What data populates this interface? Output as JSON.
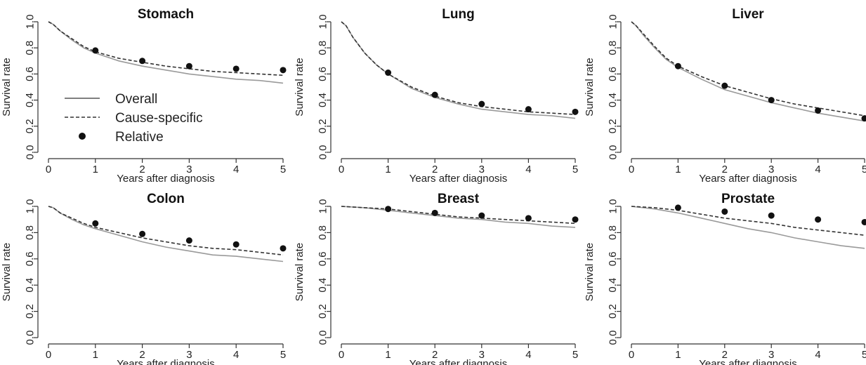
{
  "figure": {
    "legend": {
      "entries": [
        {
          "label": "Overall",
          "style": "solid"
        },
        {
          "label": "Cause-specific",
          "style": "dashed"
        },
        {
          "label": "Relative",
          "style": "point"
        }
      ],
      "panel": "Stomach",
      "placement": "bottom-left"
    }
  },
  "chart_data": [
    {
      "type": "line",
      "title": "Stomach",
      "xlabel": "Years after diagnosis",
      "ylabel": "Survival rate",
      "xlim": [
        0,
        5
      ],
      "ylim": [
        0,
        1
      ],
      "x_ticks": [
        "0",
        "1",
        "2",
        "3",
        "4",
        "5"
      ],
      "y_ticks": [
        "0.0",
        "0.2",
        "0.4",
        "0.6",
        "0.8",
        "1.0"
      ],
      "grid": false,
      "series": [
        {
          "name": "Overall",
          "style": "solid",
          "color": "#9a9a9a",
          "x": [
            0,
            0.1,
            0.25,
            0.5,
            0.75,
            1,
            1.5,
            2,
            2.5,
            3,
            3.5,
            4,
            4.5,
            5
          ],
          "y": [
            1.0,
            0.98,
            0.93,
            0.86,
            0.8,
            0.76,
            0.7,
            0.66,
            0.63,
            0.6,
            0.58,
            0.56,
            0.55,
            0.53
          ]
        },
        {
          "name": "Cause-specific",
          "style": "dashed",
          "color": "#333333",
          "x": [
            0,
            0.1,
            0.25,
            0.5,
            0.75,
            1,
            1.5,
            2,
            2.5,
            3,
            3.5,
            4,
            4.5,
            5
          ],
          "y": [
            1.0,
            0.98,
            0.93,
            0.87,
            0.81,
            0.77,
            0.72,
            0.69,
            0.66,
            0.64,
            0.62,
            0.61,
            0.6,
            0.59
          ]
        },
        {
          "name": "Relative",
          "style": "point",
          "color": "#111111",
          "x": [
            1,
            2,
            3,
            4,
            5
          ],
          "y": [
            0.78,
            0.7,
            0.66,
            0.64,
            0.63
          ]
        }
      ]
    },
    {
      "type": "line",
      "title": "Lung",
      "xlabel": "Years after diagnosis",
      "ylabel": "Survival rate",
      "xlim": [
        0,
        5
      ],
      "ylim": [
        0,
        1
      ],
      "x_ticks": [
        "0",
        "1",
        "2",
        "3",
        "4",
        "5"
      ],
      "y_ticks": [
        "0.0",
        "0.2",
        "0.4",
        "0.6",
        "0.8",
        "1.0"
      ],
      "grid": false,
      "series": [
        {
          "name": "Overall",
          "style": "solid",
          "color": "#9a9a9a",
          "x": [
            0,
            0.1,
            0.25,
            0.5,
            0.75,
            1,
            1.5,
            2,
            2.5,
            3,
            3.5,
            4,
            4.5,
            5
          ],
          "y": [
            1.0,
            0.97,
            0.88,
            0.76,
            0.67,
            0.6,
            0.49,
            0.42,
            0.37,
            0.33,
            0.31,
            0.29,
            0.28,
            0.26
          ]
        },
        {
          "name": "Cause-specific",
          "style": "dashed",
          "color": "#333333",
          "x": [
            0,
            0.1,
            0.25,
            0.5,
            0.75,
            1,
            1.5,
            2,
            2.5,
            3,
            3.5,
            4,
            4.5,
            5
          ],
          "y": [
            1.0,
            0.97,
            0.88,
            0.76,
            0.67,
            0.6,
            0.5,
            0.43,
            0.38,
            0.35,
            0.33,
            0.31,
            0.3,
            0.29
          ]
        },
        {
          "name": "Relative",
          "style": "point",
          "color": "#111111",
          "x": [
            1,
            2,
            3,
            4,
            5
          ],
          "y": [
            0.61,
            0.44,
            0.37,
            0.33,
            0.31
          ]
        }
      ]
    },
    {
      "type": "line",
      "title": "Liver",
      "xlabel": "Years after diagnosis",
      "ylabel": "Survival rate",
      "xlim": [
        0,
        5
      ],
      "ylim": [
        0,
        1
      ],
      "x_ticks": [
        "0",
        "1",
        "2",
        "3",
        "4",
        "5"
      ],
      "y_ticks": [
        "0.0",
        "0.2",
        "0.4",
        "0.6",
        "0.8",
        "1.0"
      ],
      "grid": false,
      "series": [
        {
          "name": "Overall",
          "style": "solid",
          "color": "#9a9a9a",
          "x": [
            0,
            0.1,
            0.25,
            0.5,
            0.75,
            1,
            1.5,
            2,
            2.5,
            3,
            3.5,
            4,
            4.5,
            5
          ],
          "y": [
            1.0,
            0.97,
            0.9,
            0.8,
            0.71,
            0.65,
            0.56,
            0.48,
            0.43,
            0.38,
            0.34,
            0.3,
            0.27,
            0.24
          ]
        },
        {
          "name": "Cause-specific",
          "style": "dashed",
          "color": "#333333",
          "x": [
            0,
            0.1,
            0.25,
            0.5,
            0.75,
            1,
            1.5,
            2,
            2.5,
            3,
            3.5,
            4,
            4.5,
            5
          ],
          "y": [
            1.0,
            0.97,
            0.91,
            0.81,
            0.72,
            0.66,
            0.58,
            0.51,
            0.46,
            0.41,
            0.37,
            0.34,
            0.31,
            0.28
          ]
        },
        {
          "name": "Relative",
          "style": "point",
          "color": "#111111",
          "x": [
            1,
            2,
            3,
            4,
            5
          ],
          "y": [
            0.66,
            0.51,
            0.4,
            0.32,
            0.26
          ]
        }
      ]
    },
    {
      "type": "line",
      "title": "Colon",
      "xlabel": "Years after diagnosis",
      "ylabel": "Survival rate",
      "xlim": [
        0,
        5
      ],
      "ylim": [
        0,
        1
      ],
      "x_ticks": [
        "0",
        "1",
        "2",
        "3",
        "4",
        "5"
      ],
      "y_ticks": [
        "0.0",
        "0.2",
        "0.4",
        "0.6",
        "0.8",
        "1.0"
      ],
      "grid": false,
      "series": [
        {
          "name": "Overall",
          "style": "solid",
          "color": "#9a9a9a",
          "x": [
            0,
            0.1,
            0.25,
            0.5,
            0.75,
            1,
            1.5,
            2,
            2.5,
            3,
            3.5,
            4,
            4.5,
            5
          ],
          "y": [
            1.0,
            0.99,
            0.95,
            0.9,
            0.86,
            0.83,
            0.78,
            0.73,
            0.69,
            0.66,
            0.63,
            0.62,
            0.6,
            0.58
          ]
        },
        {
          "name": "Cause-specific",
          "style": "dashed",
          "color": "#333333",
          "x": [
            0,
            0.1,
            0.25,
            0.5,
            0.75,
            1,
            1.5,
            2,
            2.5,
            3,
            3.5,
            4,
            4.5,
            5
          ],
          "y": [
            1.0,
            0.99,
            0.95,
            0.91,
            0.87,
            0.84,
            0.8,
            0.76,
            0.73,
            0.7,
            0.68,
            0.67,
            0.65,
            0.63
          ]
        },
        {
          "name": "Relative",
          "style": "point",
          "color": "#111111",
          "x": [
            1,
            2,
            3,
            4,
            5
          ],
          "y": [
            0.87,
            0.79,
            0.74,
            0.71,
            0.68
          ]
        }
      ]
    },
    {
      "type": "line",
      "title": "Breast",
      "xlabel": "Years after diagnosis",
      "ylabel": "Survival rate",
      "xlim": [
        0,
        5
      ],
      "ylim": [
        0,
        1
      ],
      "x_ticks": [
        "0",
        "1",
        "2",
        "3",
        "4",
        "5"
      ],
      "y_ticks": [
        "0.0",
        "0.2",
        "0.4",
        "0.6",
        "0.8",
        "1.0"
      ],
      "grid": false,
      "series": [
        {
          "name": "Overall",
          "style": "solid",
          "color": "#9a9a9a",
          "x": [
            0,
            0.5,
            1,
            1.5,
            2,
            2.5,
            3,
            3.5,
            4,
            4.5,
            5
          ],
          "y": [
            1.0,
            0.99,
            0.97,
            0.95,
            0.93,
            0.91,
            0.9,
            0.88,
            0.87,
            0.85,
            0.84
          ]
        },
        {
          "name": "Cause-specific",
          "style": "dashed",
          "color": "#333333",
          "x": [
            0,
            0.5,
            1,
            1.5,
            2,
            2.5,
            3,
            3.5,
            4,
            4.5,
            5
          ],
          "y": [
            1.0,
            0.99,
            0.98,
            0.96,
            0.94,
            0.92,
            0.91,
            0.9,
            0.89,
            0.88,
            0.87
          ]
        },
        {
          "name": "Relative",
          "style": "point",
          "color": "#111111",
          "x": [
            1,
            2,
            3,
            4,
            5
          ],
          "y": [
            0.98,
            0.95,
            0.93,
            0.91,
            0.9
          ]
        }
      ]
    },
    {
      "type": "line",
      "title": "Prostate",
      "xlabel": "Years after diagnosis",
      "ylabel": "Survival rate",
      "xlim": [
        0,
        5
      ],
      "ylim": [
        0,
        1
      ],
      "x_ticks": [
        "0",
        "1",
        "2",
        "3",
        "4",
        "5"
      ],
      "y_ticks": [
        "0.0",
        "0.2",
        "0.4",
        "0.6",
        "0.8",
        "1.0"
      ],
      "grid": false,
      "series": [
        {
          "name": "Overall",
          "style": "solid",
          "color": "#9a9a9a",
          "x": [
            0,
            0.5,
            1,
            1.5,
            2,
            2.5,
            3,
            3.5,
            4,
            4.5,
            5
          ],
          "y": [
            1.0,
            0.98,
            0.95,
            0.91,
            0.87,
            0.83,
            0.8,
            0.76,
            0.73,
            0.7,
            0.68
          ]
        },
        {
          "name": "Cause-specific",
          "style": "dashed",
          "color": "#333333",
          "x": [
            0,
            0.5,
            1,
            1.5,
            2,
            2.5,
            3,
            3.5,
            4,
            4.5,
            5
          ],
          "y": [
            1.0,
            0.99,
            0.97,
            0.94,
            0.91,
            0.89,
            0.87,
            0.84,
            0.82,
            0.8,
            0.78
          ]
        },
        {
          "name": "Relative",
          "style": "point",
          "color": "#111111",
          "x": [
            1,
            2,
            3,
            4,
            5
          ],
          "y": [
            0.99,
            0.96,
            0.93,
            0.9,
            0.88
          ]
        }
      ]
    }
  ]
}
